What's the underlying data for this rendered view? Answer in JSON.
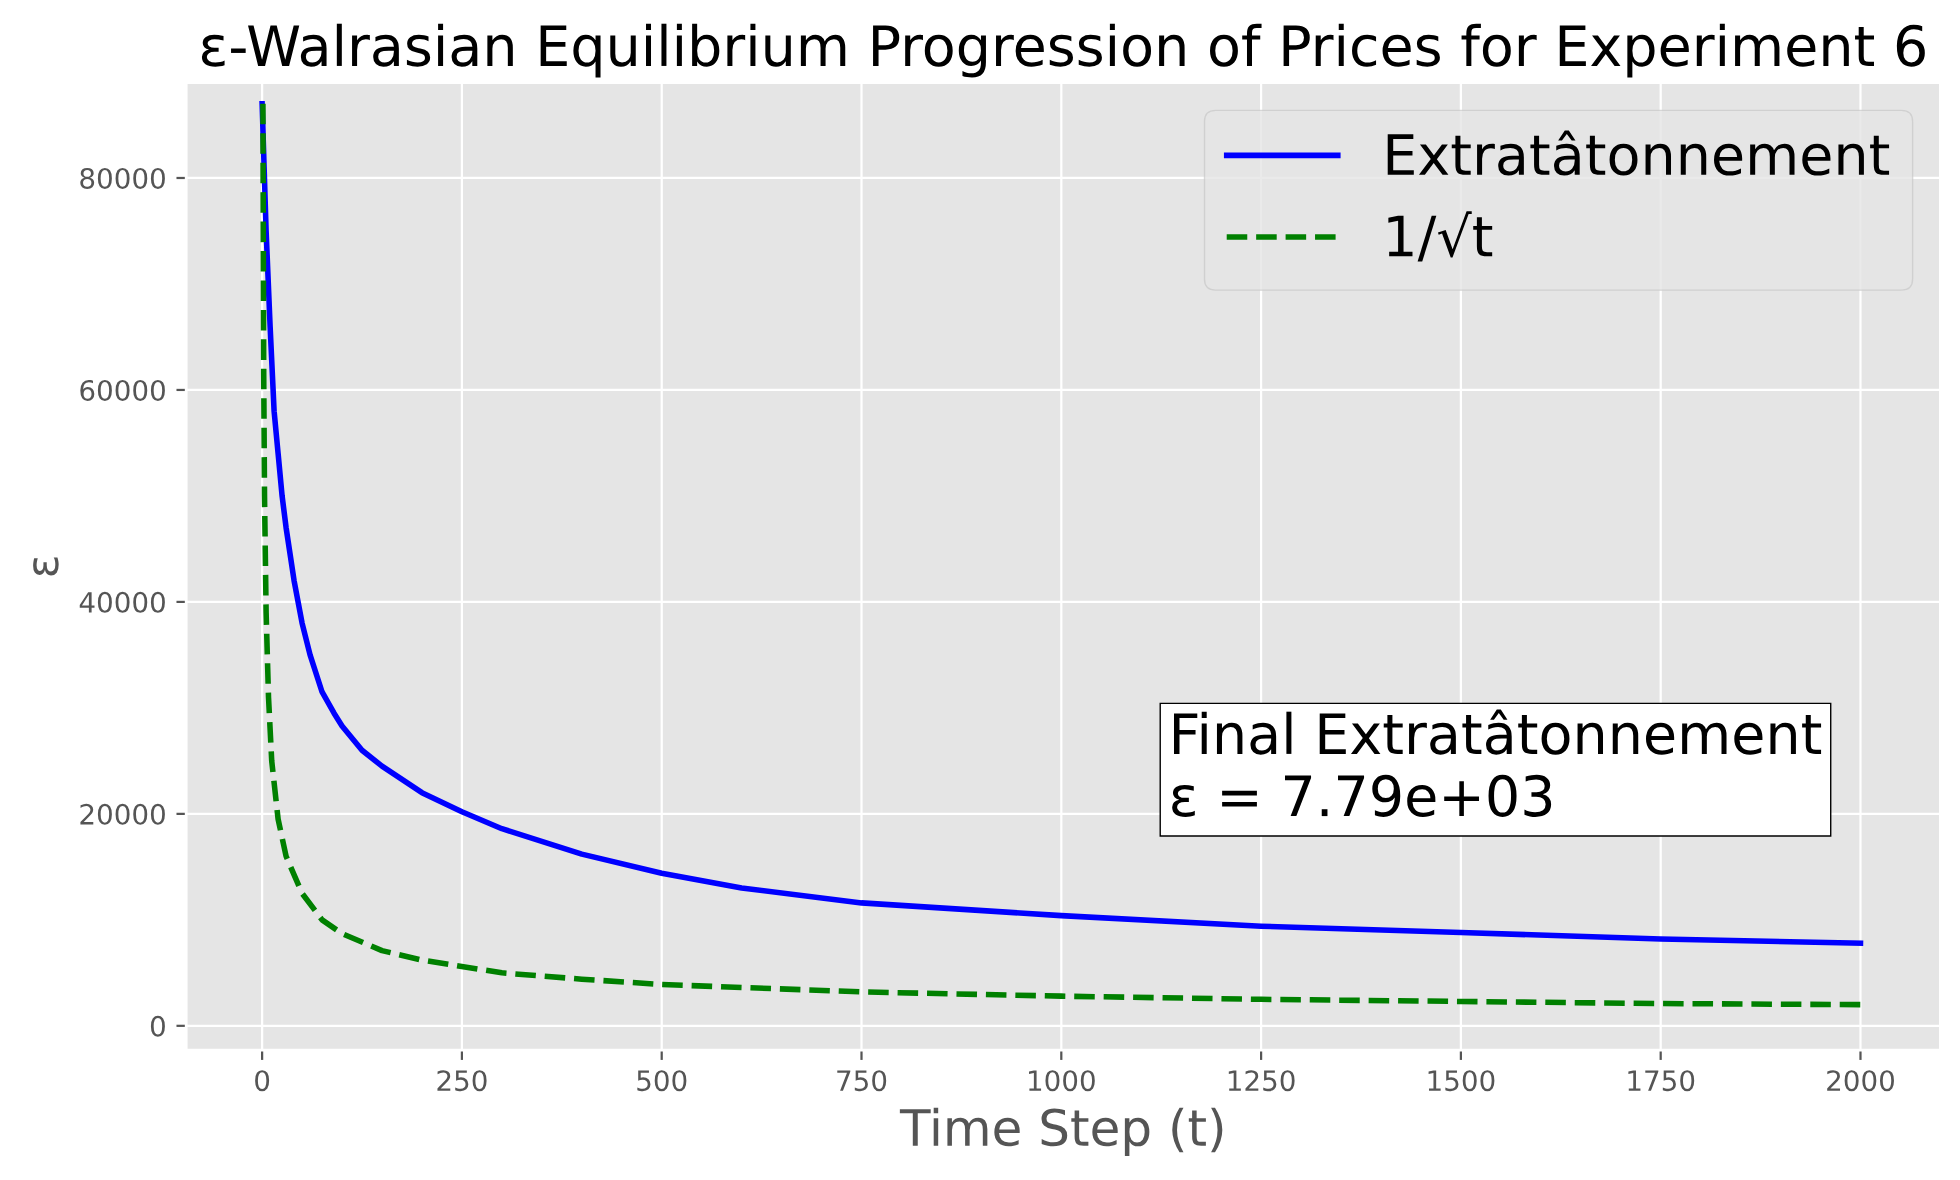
{
  "chart_data": {
    "type": "line",
    "title": "ε-Walrasian Equilibrium Progression of Prices for Experiment 6",
    "xlabel": "Time Step (t)",
    "ylabel": "ε",
    "series": [
      {
        "name": "Extratâtonnement",
        "color": "#0000ff",
        "line_style": "solid",
        "x": [
          0,
          5,
          10,
          15,
          20,
          25,
          30,
          40,
          50,
          60,
          75,
          90,
          100,
          125,
          150,
          200,
          250,
          300,
          400,
          500,
          600,
          750,
          1000,
          1250,
          1500,
          1750,
          2000
        ],
        "values": [
          87000,
          75000,
          66000,
          58000,
          54000,
          50000,
          47000,
          42000,
          38000,
          35000,
          31500,
          29500,
          28300,
          26000,
          24500,
          22000,
          20200,
          18600,
          16200,
          14400,
          13000,
          11600,
          10400,
          9400,
          8800,
          8200,
          7800
        ]
      },
      {
        "name": "1/√t",
        "color": "#008000",
        "line_style": "dashed",
        "x": [
          1,
          2,
          3,
          5,
          8,
          12,
          20,
          30,
          50,
          75,
          100,
          150,
          200,
          300,
          400,
          500,
          750,
          1000,
          1250,
          1500,
          1750,
          2000
        ],
        "values": [
          87000,
          61500,
          50000,
          39000,
          31000,
          25000,
          19500,
          16000,
          12500,
          10000,
          8700,
          7100,
          6200,
          5000,
          4400,
          3900,
          3200,
          2800,
          2500,
          2300,
          2100,
          2000
        ]
      }
    ],
    "xlim": [
      -95,
      2100
    ],
    "ylim": [
      -2300,
      89000
    ],
    "xticks": [
      0,
      250,
      500,
      750,
      1000,
      1250,
      1500,
      1750,
      2000
    ],
    "yticks": [
      0,
      20000,
      40000,
      60000,
      80000
    ],
    "grid": true,
    "legend": "top right",
    "marker": "none",
    "annotations": [
      "Final Extratâtonnement\nε = 7.79e+03"
    ]
  }
}
